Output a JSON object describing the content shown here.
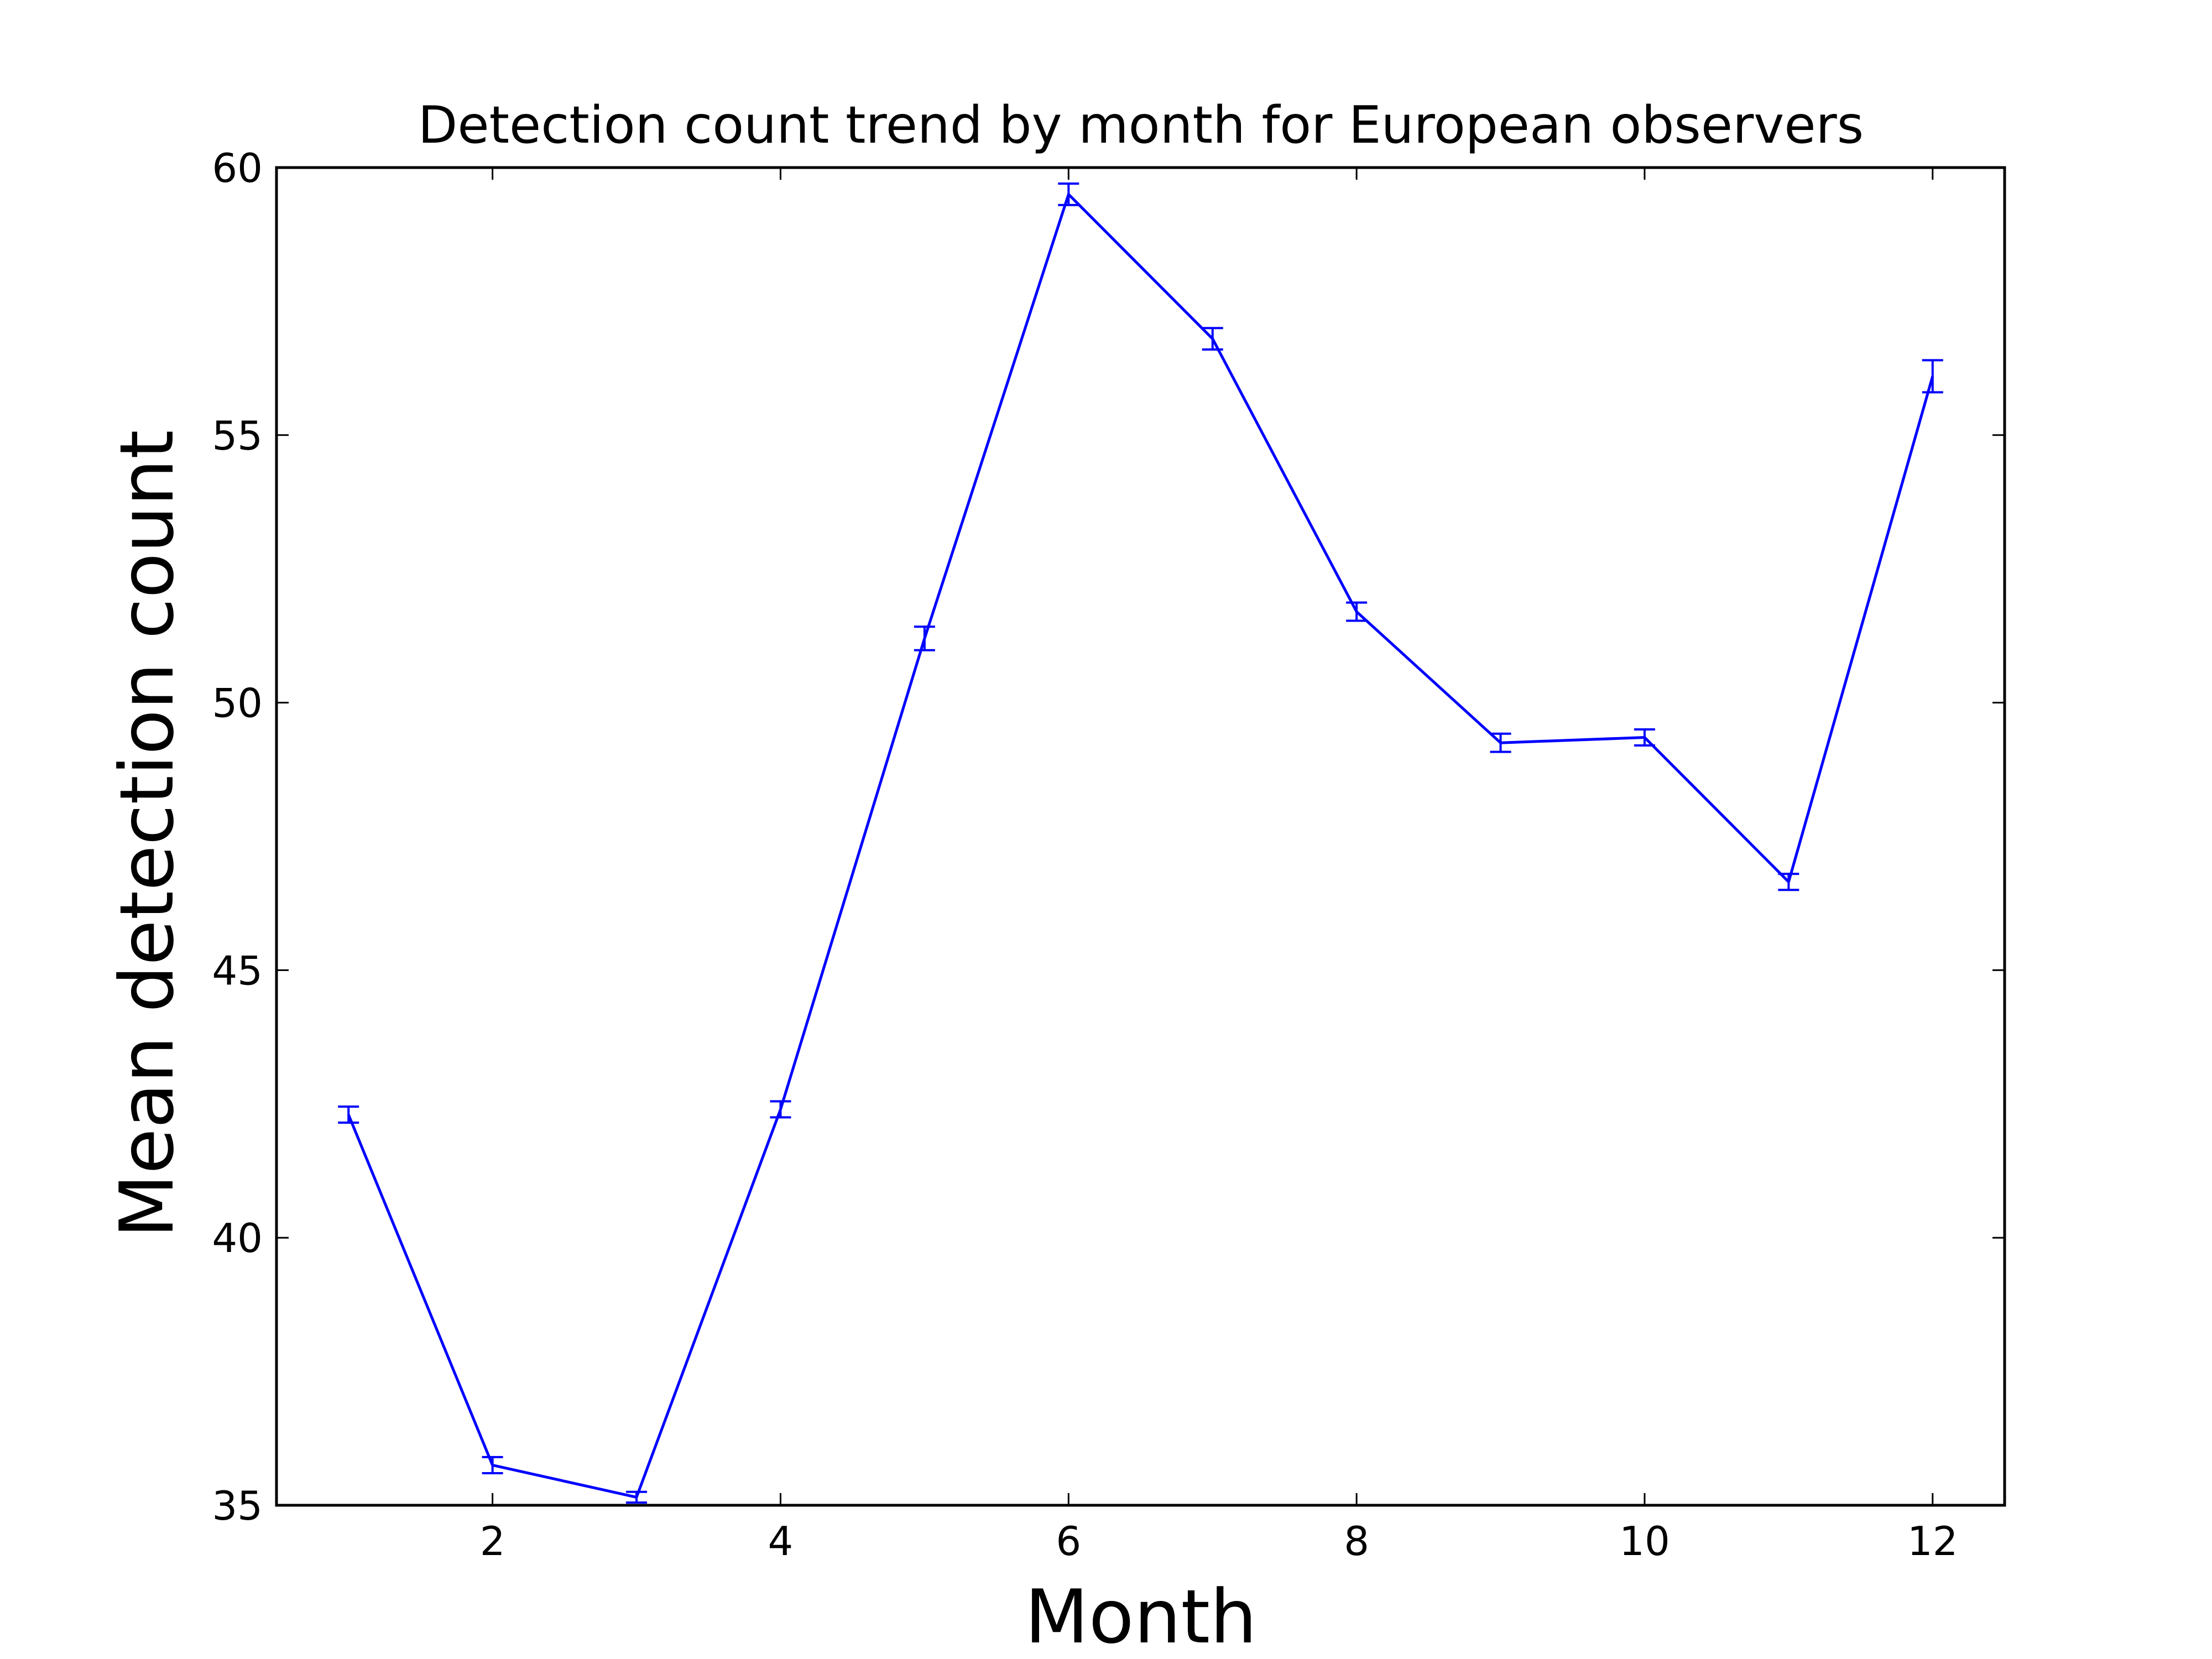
{
  "chart_data": {
    "type": "line",
    "title": "Detection count trend by month for European observers",
    "xlabel": "Month",
    "ylabel": "Mean detection count",
    "xlim": [
      0.5,
      12.5
    ],
    "ylim": [
      35,
      60
    ],
    "xticks": [
      2,
      4,
      6,
      8,
      10,
      12
    ],
    "yticks": [
      35,
      40,
      45,
      50,
      55,
      60
    ],
    "grid": false,
    "legend": "none",
    "series": [
      {
        "color": "#0000ff",
        "x": [
          1,
          2,
          3,
          4,
          5,
          6,
          7,
          8,
          9,
          10,
          11,
          12
        ],
        "y": [
          42.3,
          35.75,
          35.15,
          42.4,
          51.2,
          59.5,
          56.8,
          51.7,
          49.25,
          49.35,
          46.65,
          56.1
        ],
        "yerr": [
          0.15,
          0.15,
          0.1,
          0.15,
          0.22,
          0.2,
          0.2,
          0.17,
          0.17,
          0.15,
          0.15,
          0.3
        ]
      }
    ]
  }
}
